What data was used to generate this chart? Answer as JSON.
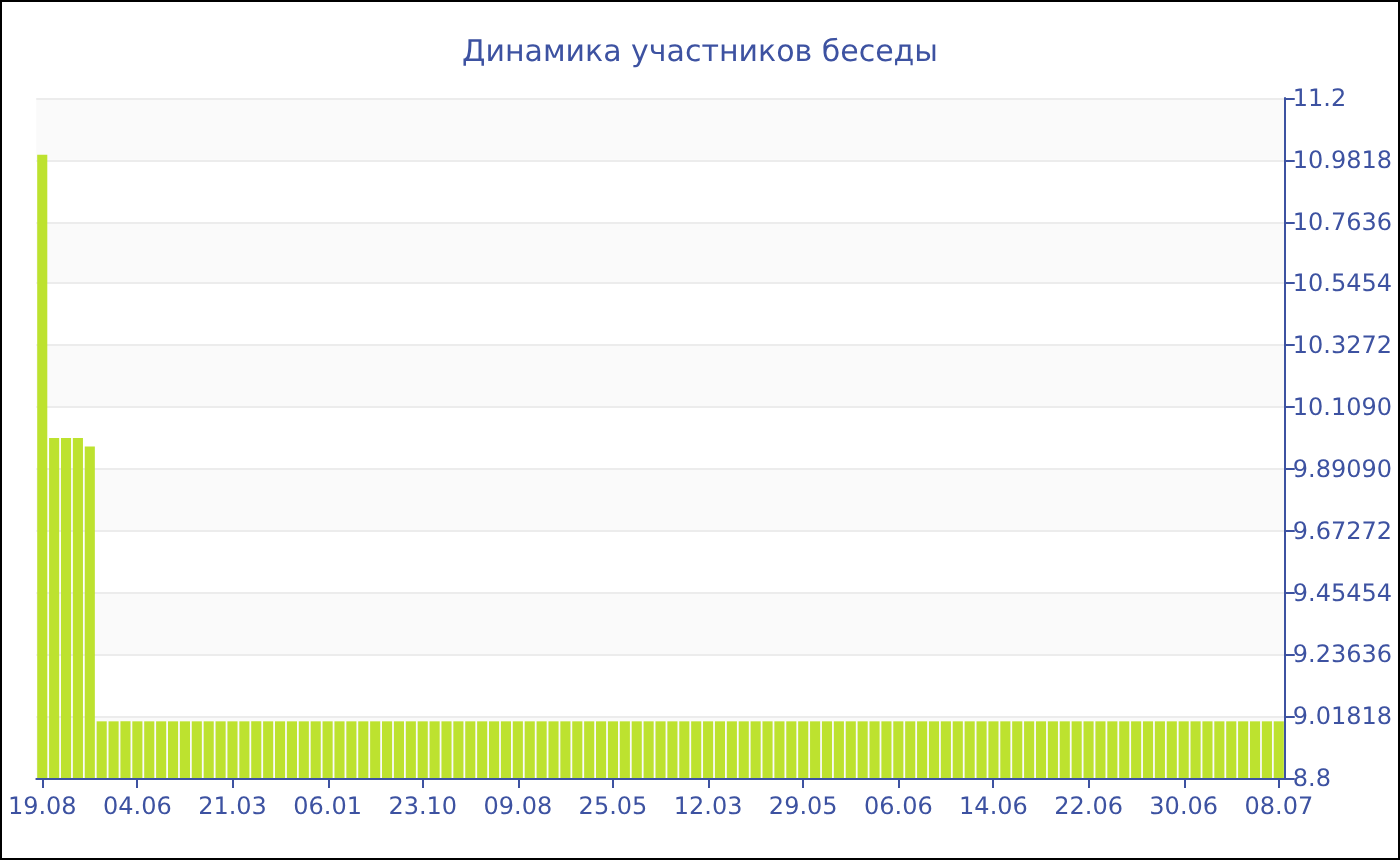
{
  "chart_data": {
    "type": "bar",
    "title": "Динамика участников беседы",
    "categories": [
      "19.08",
      null,
      null,
      null,
      null,
      null,
      null,
      null,
      "04.06",
      null,
      null,
      null,
      null,
      null,
      null,
      null,
      "21.03",
      null,
      null,
      null,
      null,
      null,
      null,
      null,
      "06.01",
      null,
      null,
      null,
      null,
      null,
      null,
      null,
      "23.10",
      null,
      null,
      null,
      null,
      null,
      null,
      null,
      "09.08",
      null,
      null,
      null,
      null,
      null,
      null,
      null,
      "25.05",
      null,
      null,
      null,
      null,
      null,
      null,
      null,
      "12.03",
      null,
      null,
      null,
      null,
      null,
      null,
      null,
      "29.05",
      null,
      null,
      null,
      null,
      null,
      null,
      null,
      "06.06",
      null,
      null,
      null,
      null,
      null,
      null,
      null,
      "14.06",
      null,
      null,
      null,
      null,
      null,
      null,
      null,
      "22.06",
      null,
      null,
      null,
      null,
      null,
      null,
      null,
      "30.06",
      null,
      null,
      null,
      null,
      null,
      null,
      null,
      "08.07"
    ],
    "values": [
      11,
      10,
      10,
      10,
      9.97,
      9,
      9,
      9,
      9,
      9,
      9,
      9,
      9,
      9,
      9,
      9,
      9,
      9,
      9,
      9,
      9,
      9,
      9,
      9,
      9,
      9,
      9,
      9,
      9,
      9,
      9,
      9,
      9,
      9,
      9,
      9,
      9,
      9,
      9,
      9,
      9,
      9,
      9,
      9,
      9,
      9,
      9,
      9,
      9,
      9,
      9,
      9,
      9,
      9,
      9,
      9,
      9,
      9,
      9,
      9,
      9,
      9,
      9,
      9,
      9,
      9,
      9,
      9,
      9,
      9,
      9,
      9,
      9,
      9,
      9,
      9,
      9,
      9,
      9,
      9,
      9,
      9,
      9,
      9,
      9,
      9,
      9,
      9,
      9,
      9,
      9,
      9,
      9,
      9,
      9,
      9,
      9,
      9,
      9,
      9,
      9,
      9,
      9,
      9,
      9
    ],
    "color": "#bde22f",
    "ylim": [
      8.8,
      11.2
    ],
    "yticks": [
      8.8,
      {
        "value": 9.01818,
        "label": "9.01818"
      },
      {
        "value": 9.23636,
        "label": "9.23636"
      },
      {
        "value": 9.45454,
        "label": "9.45454"
      },
      {
        "value": 9.67272,
        "label": "9.67272"
      },
      {
        "value": 9.8909,
        "label": "9.89090"
      },
      {
        "value": 10.109,
        "label": "10.1090"
      },
      {
        "value": 10.3272,
        "label": "10.3272"
      },
      {
        "value": 10.5454,
        "label": "10.5454"
      },
      {
        "value": 10.7636,
        "label": "10.7636"
      },
      {
        "value": 10.9818,
        "label": "10.9818"
      },
      11.2
    ],
    "grid": "y"
  }
}
